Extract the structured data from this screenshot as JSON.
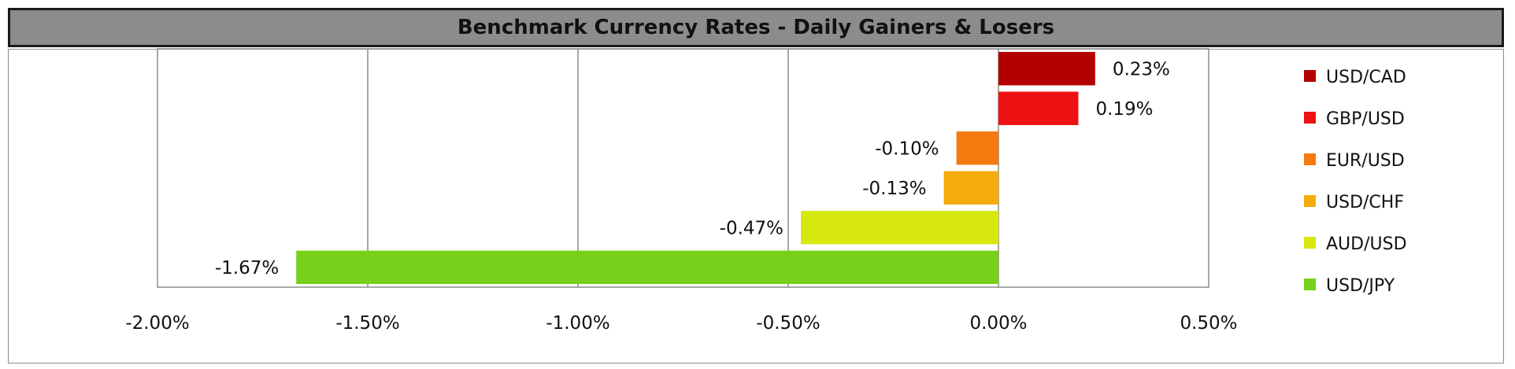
{
  "chart_data": {
    "type": "bar",
    "orientation": "horizontal",
    "title": "Benchmark Currency Rates - Daily Gainers & Losers",
    "xlabel": "",
    "ylabel": "",
    "xlim": [
      -2.0,
      0.5
    ],
    "x_ticks": [
      -2.0,
      -1.5,
      -1.0,
      -0.5,
      0.0,
      0.5
    ],
    "x_tick_labels": [
      "-2.00%",
      "-1.50%",
      "-1.00%",
      "-0.50%",
      "0.00%",
      "0.50%"
    ],
    "grid": "vertical",
    "legend_position": "right",
    "categories": [
      "USD/CAD",
      "GBP/USD",
      "EUR/USD",
      "USD/CHF",
      "AUD/USD",
      "USD/JPY"
    ],
    "values": [
      0.23,
      0.19,
      -0.1,
      -0.13,
      -0.47,
      -1.67
    ],
    "data_labels": [
      "0.23%",
      "0.19%",
      "-0.10%",
      "-0.13%",
      "-0.47%",
      "-1.67%"
    ],
    "colors": [
      "#b20000",
      "#ee1111",
      "#f57a10",
      "#f5ac0a",
      "#d6e80e",
      "#77d019"
    ]
  }
}
